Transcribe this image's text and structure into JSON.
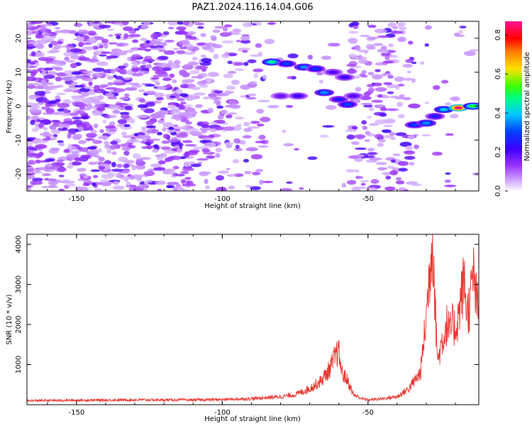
{
  "title": "PAZ1.2024.116.14.04.G06",
  "colors": {
    "snr_line": "#e8302a",
    "colorbar": [
      "#ffffff",
      "#9b30ff",
      "#5a00e0",
      "#0000ff",
      "#00c8ff",
      "#00ff40",
      "#b0ff00",
      "#ffe000",
      "#ff7f00",
      "#ff0000",
      "#ff1493"
    ],
    "background": "#ffffff"
  },
  "chart_data": [
    {
      "type": "heatmap",
      "title": "PAZ1.2024.116.14.04.G06",
      "xlabel": "Height of straight line (km)",
      "ylabel": "Frequency (Hz)",
      "xlim": [
        -167,
        -12
      ],
      "ylim": [
        -25,
        25
      ],
      "xticks": [
        -150,
        -100,
        -50
      ],
      "xtick_labels": [
        "-150",
        "-100",
        "-50"
      ],
      "yticks": [
        -20,
        -10,
        0,
        10,
        20
      ],
      "ytick_labels": [
        "-20",
        "-10",
        "0",
        "10",
        "20"
      ],
      "colorbar": {
        "label": "Normalized spectral amplitude",
        "range": [
          0,
          0.87
        ],
        "ticks": [
          0.0,
          0.2,
          0.4,
          0.6,
          0.8
        ],
        "tick_labels": [
          "0.0",
          "0.2",
          "0.4",
          "0.6",
          "0.8"
        ]
      },
      "strong_features": [
        {
          "x": -83,
          "y": 13,
          "v": 0.45
        },
        {
          "x": -78,
          "y": 12.5,
          "v": 0.3
        },
        {
          "x": -72,
          "y": 11.5,
          "v": 0.35
        },
        {
          "x": -68,
          "y": 11,
          "v": 0.28
        },
        {
          "x": -62,
          "y": 10,
          "v": 0.2
        },
        {
          "x": -58,
          "y": 8.5,
          "v": 0.22
        },
        {
          "x": -80,
          "y": 3,
          "v": 0.18
        },
        {
          "x": -74,
          "y": 3,
          "v": 0.22
        },
        {
          "x": -65,
          "y": 4,
          "v": 0.35
        },
        {
          "x": -60,
          "y": 2,
          "v": 0.25
        },
        {
          "x": -57,
          "y": 0.5,
          "v": 0.3
        },
        {
          "x": -55,
          "y": 3,
          "v": 0.2
        },
        {
          "x": -34,
          "y": -5.5,
          "v": 0.3
        },
        {
          "x": -30,
          "y": -5,
          "v": 0.35
        },
        {
          "x": -27,
          "y": -3,
          "v": 0.25
        },
        {
          "x": -24,
          "y": -1,
          "v": 0.4
        },
        {
          "x": -19,
          "y": -0.5,
          "v": 0.85
        },
        {
          "x": -14,
          "y": 0,
          "v": 0.5
        }
      ]
    },
    {
      "type": "line",
      "xlabel": "Height of straight line (km)",
      "ylabel": "SNR (10 * v/v)",
      "xlim": [
        -167,
        -12
      ],
      "ylim": [
        0,
        4250
      ],
      "xticks": [
        -150,
        -100,
        -50
      ],
      "xtick_labels": [
        "-150",
        "-100",
        "-50"
      ],
      "yticks": [
        1000,
        2000,
        3000,
        4000
      ],
      "ytick_labels": [
        "1000",
        "2000",
        "3000",
        "4000"
      ],
      "series": [
        {
          "x": [
            -167,
            -150,
            -130,
            -110,
            -100,
            -90,
            -80,
            -75,
            -70,
            -66,
            -63,
            -61,
            -60,
            -59,
            -57,
            -55,
            -52,
            -50,
            -45,
            -40,
            -36,
            -34,
            -32,
            -30,
            -28,
            -27.5,
            -27,
            -26,
            -25,
            -24,
            -23,
            -22,
            -21,
            -20,
            -19,
            -18,
            -17,
            -16,
            -15,
            -14,
            -13,
            -12
          ],
          "y": [
            100,
            110,
            120,
            120,
            130,
            150,
            200,
            250,
            400,
            600,
            900,
            1250,
            1300,
            800,
            600,
            250,
            150,
            120,
            150,
            200,
            400,
            600,
            800,
            2200,
            4150,
            3800,
            2400,
            1050,
            1500,
            1700,
            2000,
            1800,
            2000,
            1900,
            2200,
            2700,
            3100,
            2300,
            2500,
            3300,
            2700,
            2200
          ]
        }
      ]
    }
  ]
}
